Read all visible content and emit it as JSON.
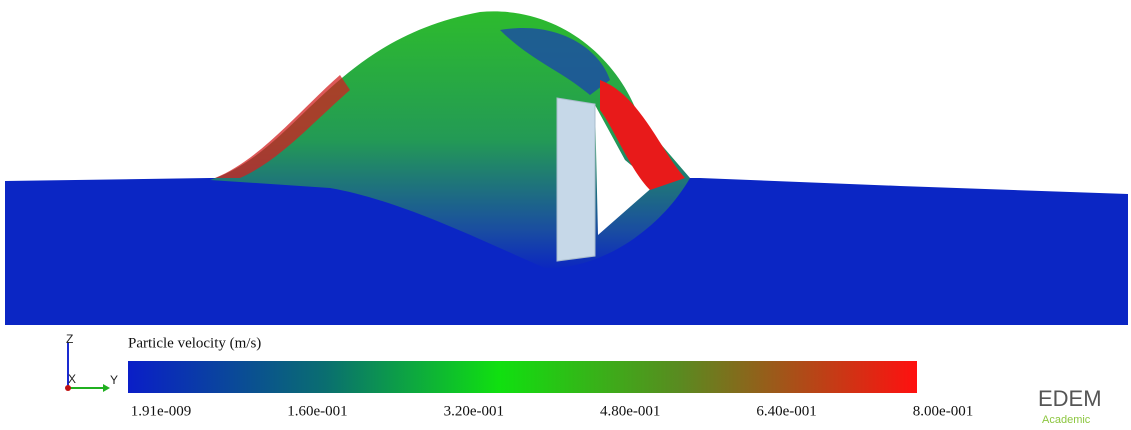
{
  "colorbar": {
    "title": "Particle velocity (m/s)",
    "ticks": [
      "1.91e-009",
      "1.60e-001",
      "3.20e-001",
      "4.80e-001",
      "6.40e-001",
      "8.00e-001"
    ]
  },
  "triad": {
    "z": "Z",
    "x": "X",
    "y": "Y"
  },
  "logo": {
    "name": "EDEM",
    "edition": "Academic"
  }
}
